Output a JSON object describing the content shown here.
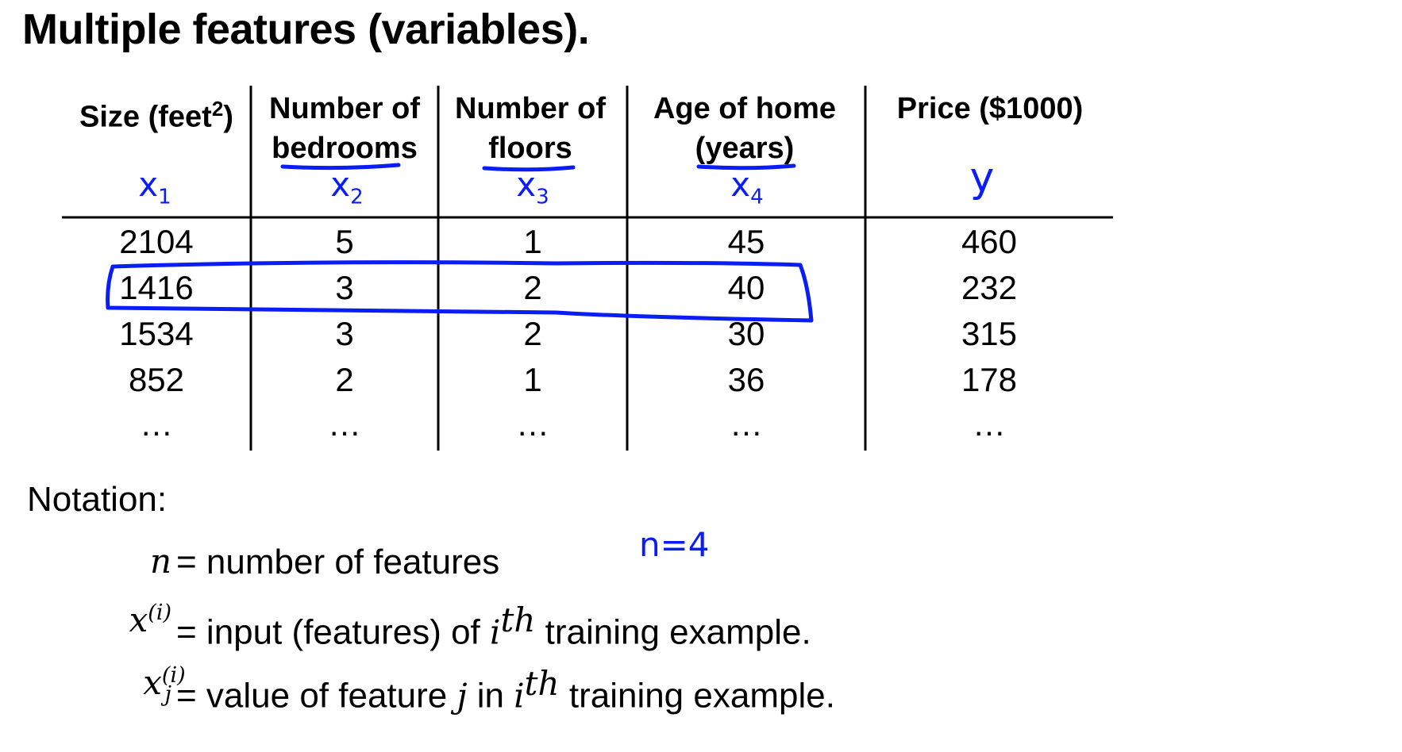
{
  "title": "Multiple features (variables).",
  "table": {
    "columns": [
      {
        "header_line1": "Size (feet",
        "header_sup": "2",
        "header_line1_end": ")",
        "header_line2": "",
        "symbol": "x",
        "symbol_sub": "1"
      },
      {
        "header_line1": "Number of",
        "header_line2": "bedrooms",
        "symbol": "x",
        "symbol_sub": "2"
      },
      {
        "header_line1": "Number of",
        "header_line2": "floors",
        "symbol": "x",
        "symbol_sub": "3"
      },
      {
        "header_line1": "Age of home",
        "header_line2": "(years)",
        "symbol": "x",
        "symbol_sub": "4"
      },
      {
        "header_line1": "Price ($1000)",
        "header_line2": "",
        "symbol": "y",
        "symbol_sub": ""
      }
    ],
    "rows": [
      [
        "2104",
        "5",
        "1",
        "45",
        "460"
      ],
      [
        "1416",
        "3",
        "2",
        "40",
        "232"
      ],
      [
        "1534",
        "3",
        "2",
        "30",
        "315"
      ],
      [
        "852",
        "2",
        "1",
        "36",
        "178"
      ],
      [
        "…",
        "…",
        "…",
        "…",
        "…"
      ]
    ],
    "highlighted_row": 1,
    "ink_color": "#0b1df5"
  },
  "notation": {
    "heading": "Notation:",
    "lines": [
      {
        "symbol": "n",
        "sup": "",
        "sub": "",
        "text": "= number of features"
      },
      {
        "symbol": "x",
        "sup": "(i)",
        "sub": "",
        "text_before": "= input (features) of",
        "inline_var": "i",
        "inline_sup": "th",
        "text_after": "training example."
      },
      {
        "symbol": "x",
        "sup": "(i)",
        "sub": "j",
        "text_before": "= value of feature",
        "inline_var1": "j",
        "text_mid": "in",
        "inline_var": "i",
        "inline_sup": "th",
        "text_after": "training example."
      }
    ],
    "handwritten_note": "n=4"
  }
}
